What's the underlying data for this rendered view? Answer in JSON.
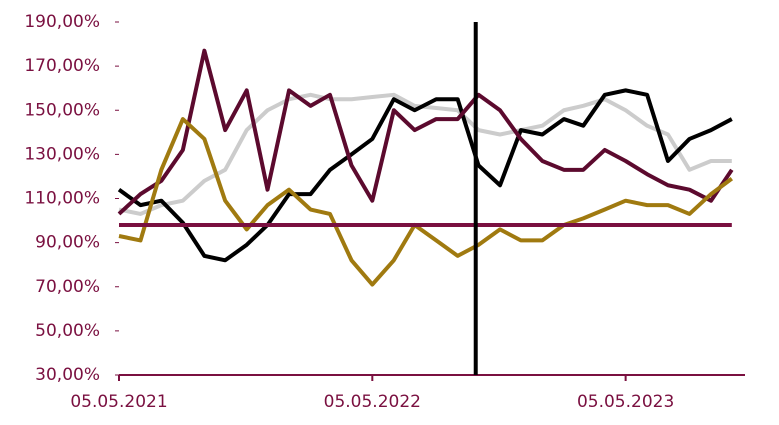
{
  "chart_data": {
    "type": "line",
    "x": [
      "05.05.2021",
      "05.06.2021",
      "05.07.2021",
      "05.08.2021",
      "05.09.2021",
      "05.10.2021",
      "05.11.2021",
      "05.12.2021",
      "05.01.2022",
      "05.02.2022",
      "05.03.2022",
      "05.04.2022",
      "05.05.2022",
      "05.06.2022",
      "05.07.2022",
      "05.08.2022",
      "05.09.2022",
      "05.10.2022",
      "05.11.2022",
      "05.12.2022",
      "05.01.2023",
      "05.02.2023",
      "05.03.2023",
      "05.04.2023",
      "05.05.2023",
      "05.06.2023",
      "05.07.2023",
      "05.08.2023",
      "05.09.2023",
      "05.10.2023"
    ],
    "series": [
      {
        "color": "#cccccc",
        "values": [
          105,
          103,
          107,
          109,
          118,
          123,
          141,
          150,
          155,
          157,
          155,
          155,
          156,
          157,
          152,
          151,
          150,
          141,
          139,
          141,
          143,
          150,
          152,
          155,
          150,
          143,
          139,
          123,
          127,
          127
        ]
      },
      {
        "color": "#000000",
        "values": [
          114,
          107,
          109,
          99,
          84,
          82,
          89,
          98,
          112,
          112,
          123,
          130,
          137,
          155,
          150,
          155,
          155,
          125,
          116,
          141,
          139,
          146,
          143,
          157,
          159,
          157,
          127,
          137,
          141,
          146
        ]
      },
      {
        "color": "#5c0a2e",
        "values": [
          103,
          112,
          118,
          132,
          177,
          141,
          159,
          114,
          159,
          152,
          157,
          125,
          109,
          150,
          141,
          146,
          146,
          157,
          150,
          137,
          127,
          123,
          123,
          132,
          127,
          121,
          116,
          114,
          109,
          123
        ]
      },
      {
        "color": "#a07a10",
        "values": [
          93,
          91,
          123,
          146,
          137,
          109,
          96,
          107,
          114,
          105,
          103,
          82,
          71,
          82,
          98,
          91,
          84,
          89,
          96,
          91,
          91,
          98,
          101,
          105,
          109,
          107,
          107,
          103,
          112,
          119
        ]
      }
    ],
    "xlim": [
      "05.05.2021",
      "24.10.2023"
    ],
    "xticks": [
      "05.05.2021",
      "05.05.2022",
      "05.05.2023"
    ],
    "ylim": [
      30,
      190
    ],
    "yticks": [
      {
        "value": 30,
        "label": "30,00%"
      },
      {
        "value": 50,
        "label": "50,00%"
      },
      {
        "value": 70,
        "label": "70,00%"
      },
      {
        "value": 90,
        "label": "90,00%"
      },
      {
        "value": 110,
        "label": "110,00%"
      },
      {
        "value": 130,
        "label": "130,00%"
      },
      {
        "value": 150,
        "label": "150,00%"
      },
      {
        "value": 170,
        "label": "170,00%"
      },
      {
        "value": 190,
        "label": "190,00%"
      }
    ],
    "hline": 98,
    "hline_color": "#7a1040",
    "vline": "01.10.2022",
    "vline_color": "#000000",
    "axis_color": "#7a1040"
  }
}
